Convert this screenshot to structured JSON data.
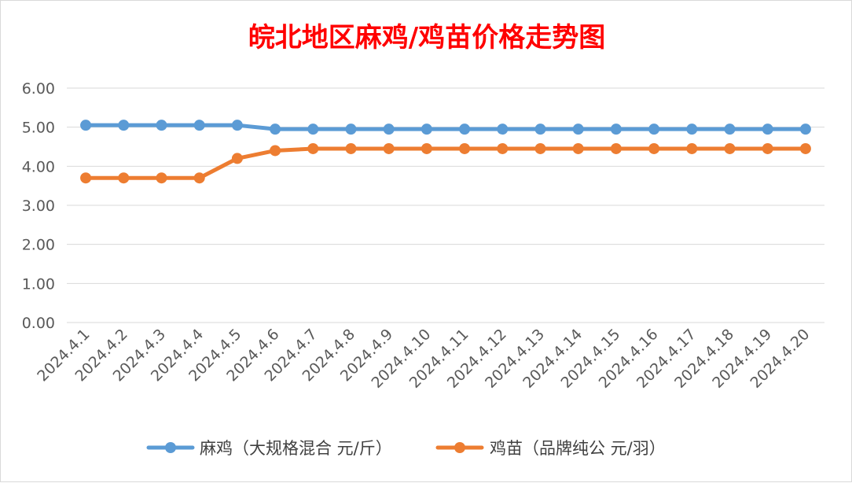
{
  "chart_data": {
    "type": "line",
    "title": "皖北地区麻鸡/鸡苗价格走势图",
    "categories": [
      "2024.4.1",
      "2024.4.2",
      "2024.4.3",
      "2024.4.4",
      "2024.4.5",
      "2024.4.6",
      "2024.4.7",
      "2024.4.8",
      "2024.4.9",
      "2024.4.10",
      "2024.4.11",
      "2024.4.12",
      "2024.4.13",
      "2024.4.14",
      "2024.4.15",
      "2024.4.16",
      "2024.4.17",
      "2024.4.18",
      "2024.4.19",
      "2024.4.20"
    ],
    "y_ticks": [
      "0.00",
      "1.00",
      "2.00",
      "3.00",
      "4.00",
      "5.00",
      "6.00"
    ],
    "ylim": [
      0,
      6
    ],
    "grid": true,
    "legend_position": "bottom",
    "series": [
      {
        "name": "麻鸡（大规格混合 元/斤）",
        "color": "#5b9bd5",
        "values": [
          5.05,
          5.05,
          5.05,
          5.05,
          5.05,
          4.95,
          4.95,
          4.95,
          4.95,
          4.95,
          4.95,
          4.95,
          4.95,
          4.95,
          4.95,
          4.95,
          4.95,
          4.95,
          4.95,
          4.95
        ]
      },
      {
        "name": "鸡苗（品牌纯公 元/羽）",
        "color": "#ed7d31",
        "values": [
          3.7,
          3.7,
          3.7,
          3.7,
          4.2,
          4.4,
          4.45,
          4.45,
          4.45,
          4.45,
          4.45,
          4.45,
          4.45,
          4.45,
          4.45,
          4.45,
          4.45,
          4.45,
          4.45,
          4.45
        ]
      }
    ]
  }
}
